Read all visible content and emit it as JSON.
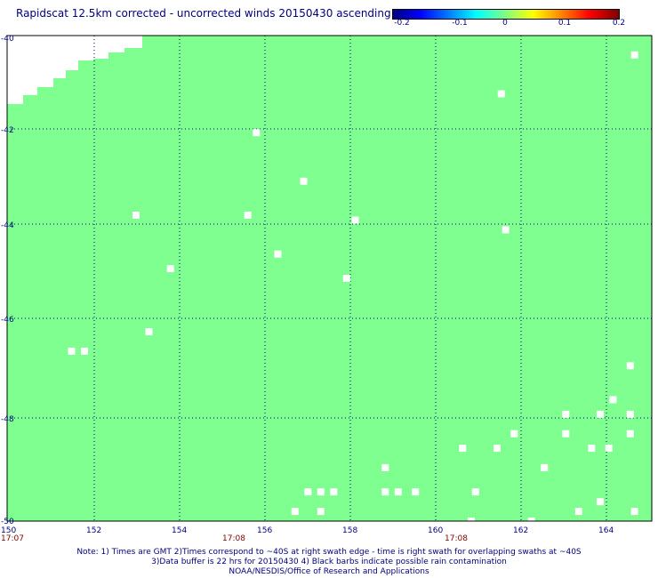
{
  "title": "Rapidscat 12.5km corrected - uncorrected winds 20150430 ascending",
  "colorbar": {
    "labels": [
      "-0.2",
      "-0.1",
      "0",
      "0.1",
      "0.2"
    ]
  },
  "map": {
    "lon_range": [
      150,
      165
    ],
    "lat_range": [
      -50,
      -40
    ],
    "lat_ticks": [
      "-40",
      "-42",
      "-44",
      "-46",
      "-48",
      "-50"
    ],
    "lon_ticks": [
      "150",
      "152",
      "154",
      "156",
      "158",
      "160",
      "162",
      "164"
    ],
    "time_labels": [
      "17:07",
      "17:08",
      "17:08"
    ],
    "fill_color": "#7fff8f",
    "missing_cells": [
      [
        164.6,
        -40.4
      ],
      [
        161.5,
        -41.2
      ],
      [
        155.8,
        -42.0
      ],
      [
        156.9,
        -43.0
      ],
      [
        153.0,
        -43.7
      ],
      [
        155.6,
        -43.7
      ],
      [
        158.1,
        -43.8
      ],
      [
        161.6,
        -44.0
      ],
      [
        156.3,
        -44.5
      ],
      [
        153.8,
        -44.8
      ],
      [
        157.9,
        -45.0
      ],
      [
        153.3,
        -46.1
      ],
      [
        151.5,
        -46.5
      ],
      [
        151.8,
        -46.5
      ],
      [
        164.5,
        -46.8
      ],
      [
        164.1,
        -47.5
      ],
      [
        163.0,
        -47.8
      ],
      [
        163.8,
        -47.8
      ],
      [
        164.5,
        -47.8
      ],
      [
        161.8,
        -48.2
      ],
      [
        163.0,
        -48.2
      ],
      [
        164.5,
        -48.2
      ],
      [
        160.6,
        -48.5
      ],
      [
        161.4,
        -48.5
      ],
      [
        163.6,
        -48.5
      ],
      [
        164.0,
        -48.5
      ],
      [
        162.5,
        -48.9
      ],
      [
        158.8,
        -48.9
      ],
      [
        157.0,
        -49.4
      ],
      [
        157.3,
        -49.4
      ],
      [
        157.6,
        -49.4
      ],
      [
        158.8,
        -49.4
      ],
      [
        159.1,
        -49.4
      ],
      [
        159.5,
        -49.4
      ],
      [
        160.9,
        -49.4
      ],
      [
        163.8,
        -49.6
      ],
      [
        156.7,
        -49.8
      ],
      [
        157.3,
        -49.8
      ],
      [
        163.3,
        -49.8
      ],
      [
        164.6,
        -49.8
      ],
      [
        160.8,
        -50.0
      ],
      [
        162.2,
        -50.0
      ]
    ]
  },
  "notes": {
    "line1": "Note: 1) Times are GMT 2)Times correspond to ~40S at right swath edge - time is right swath for overlapping swaths at ~40S",
    "line2": "3)Data buffer is 22 hrs for 20150430 4) Black barbs indicate possible rain contamination",
    "line3": "NOAA/NESDIS/Office of Research and Applications"
  }
}
